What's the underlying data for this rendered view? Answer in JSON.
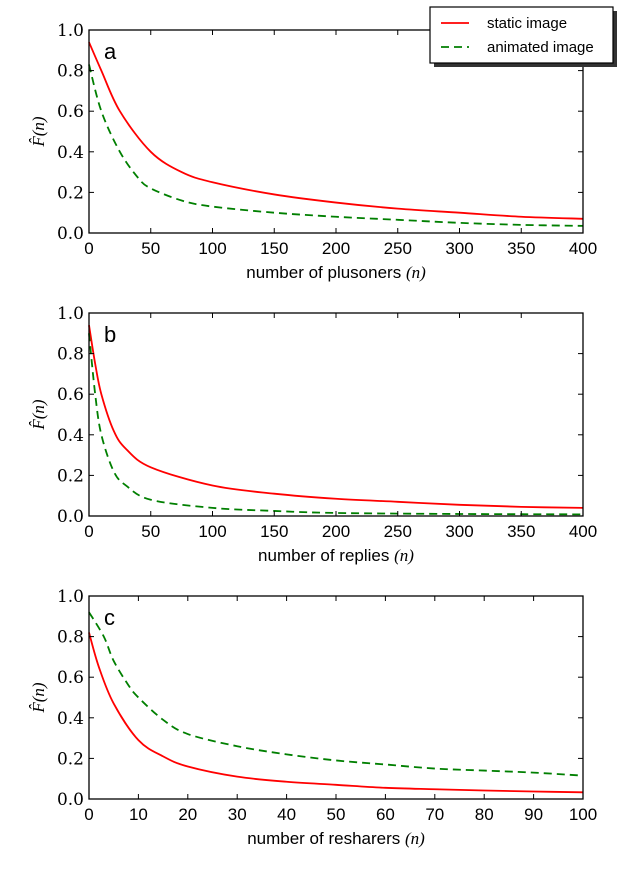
{
  "legend": {
    "entries": [
      {
        "label": "static image",
        "color": "#ff0000",
        "style": "solid"
      },
      {
        "label": "animated image",
        "color": "#007f00",
        "style": "dashed"
      }
    ]
  },
  "chart_data": [
    {
      "type": "line",
      "panel_label": "a",
      "xlabel": "number of plusoners",
      "xlabel_var": "(n)",
      "ylabel": "F̂(n)",
      "xlim": [
        0,
        400
      ],
      "ylim": [
        0,
        1
      ],
      "xticks": [
        "0",
        "50",
        "100",
        "150",
        "200",
        "250",
        "300",
        "350",
        "400"
      ],
      "yticks": [
        "0.0",
        "0.2",
        "0.4",
        "0.6",
        "0.8",
        "1.0"
      ],
      "series": [
        {
          "name": "static image",
          "x": [
            0,
            10,
            25,
            50,
            75,
            100,
            150,
            200,
            250,
            300,
            350,
            400
          ],
          "y": [
            0.94,
            0.8,
            0.6,
            0.4,
            0.3,
            0.25,
            0.19,
            0.15,
            0.12,
            0.1,
            0.08,
            0.07
          ]
        },
        {
          "name": "animated image",
          "x": [
            0,
            10,
            25,
            40,
            50,
            75,
            100,
            150,
            200,
            250,
            300,
            350,
            400
          ],
          "y": [
            0.83,
            0.6,
            0.4,
            0.27,
            0.22,
            0.16,
            0.13,
            0.1,
            0.08,
            0.065,
            0.05,
            0.04,
            0.035
          ]
        }
      ]
    },
    {
      "type": "line",
      "panel_label": "b",
      "xlabel": "number of replies",
      "xlabel_var": "(n)",
      "ylabel": "F̂(n)",
      "xlim": [
        0,
        400
      ],
      "ylim": [
        0,
        1
      ],
      "xticks": [
        "0",
        "50",
        "100",
        "150",
        "200",
        "250",
        "300",
        "350",
        "400"
      ],
      "yticks": [
        "0.0",
        "0.2",
        "0.4",
        "0.6",
        "0.8",
        "1.0"
      ],
      "series": [
        {
          "name": "static image",
          "x": [
            0,
            5,
            10,
            20,
            30,
            50,
            100,
            150,
            200,
            250,
            300,
            350,
            400
          ],
          "y": [
            0.94,
            0.75,
            0.6,
            0.42,
            0.33,
            0.24,
            0.15,
            0.11,
            0.085,
            0.07,
            0.055,
            0.045,
            0.04
          ]
        },
        {
          "name": "animated image",
          "x": [
            0,
            5,
            10,
            20,
            30,
            50,
            100,
            150,
            200,
            300,
            400
          ],
          "y": [
            0.9,
            0.6,
            0.4,
            0.22,
            0.15,
            0.08,
            0.04,
            0.025,
            0.015,
            0.01,
            0.008
          ]
        }
      ]
    },
    {
      "type": "line",
      "panel_label": "c",
      "xlabel": "number of resharers",
      "xlabel_var": "(n)",
      "ylabel": "F̂(n)",
      "xlim": [
        0,
        100
      ],
      "ylim": [
        0,
        1
      ],
      "xticks": [
        "0",
        "10",
        "20",
        "30",
        "40",
        "50",
        "60",
        "70",
        "80",
        "90",
        "100"
      ],
      "yticks": [
        "0.0",
        "0.2",
        "0.4",
        "0.6",
        "0.8",
        "1.0"
      ],
      "series": [
        {
          "name": "static image",
          "x": [
            0,
            2,
            5,
            10,
            15,
            20,
            30,
            40,
            50,
            60,
            70,
            80,
            90,
            100
          ],
          "y": [
            0.82,
            0.65,
            0.47,
            0.29,
            0.21,
            0.16,
            0.11,
            0.085,
            0.07,
            0.055,
            0.048,
            0.042,
            0.037,
            0.033
          ]
        },
        {
          "name": "animated image",
          "x": [
            0,
            3,
            5,
            8,
            10,
            15,
            20,
            30,
            40,
            50,
            60,
            70,
            80,
            90,
            100
          ],
          "y": [
            0.92,
            0.8,
            0.68,
            0.56,
            0.5,
            0.39,
            0.32,
            0.26,
            0.22,
            0.19,
            0.17,
            0.15,
            0.14,
            0.13,
            0.115
          ]
        }
      ]
    }
  ]
}
